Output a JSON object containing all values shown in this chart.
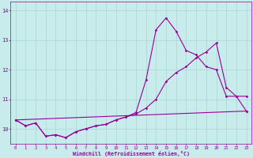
{
  "title": "",
  "xlabel": "Windchill (Refroidissement éolien,°C)",
  "ylabel": "",
  "background_color": "#c8ecec",
  "line_color": "#990099",
  "grid_color": "#aad4d4",
  "xlim": [
    -0.5,
    23.5
  ],
  "ylim": [
    9.5,
    14.3
  ],
  "xticks": [
    0,
    1,
    2,
    3,
    4,
    5,
    6,
    7,
    8,
    9,
    10,
    11,
    12,
    13,
    14,
    15,
    16,
    17,
    18,
    19,
    20,
    21,
    22,
    23
  ],
  "yticks": [
    10,
    11,
    12,
    13,
    14
  ],
  "series": {
    "line1_x": [
      0,
      1,
      2,
      3,
      4,
      5,
      6,
      7,
      8,
      9,
      10,
      11,
      12,
      13,
      14,
      15,
      16,
      17,
      18,
      19,
      20,
      21,
      22,
      23
    ],
    "line1_y": [
      10.3,
      10.1,
      10.2,
      9.75,
      9.8,
      9.7,
      9.9,
      10.0,
      10.1,
      10.15,
      10.3,
      10.4,
      10.55,
      11.65,
      13.35,
      13.75,
      13.3,
      12.65,
      12.5,
      12.1,
      12.0,
      11.1,
      11.1,
      11.1
    ],
    "line2_x": [
      0,
      1,
      2,
      3,
      4,
      5,
      6,
      7,
      8,
      9,
      10,
      11,
      12,
      13,
      14,
      15,
      16,
      17,
      18,
      19,
      20,
      21,
      22,
      23
    ],
    "line2_y": [
      10.3,
      10.1,
      10.2,
      9.75,
      9.8,
      9.7,
      9.9,
      10.0,
      10.1,
      10.15,
      10.3,
      10.4,
      10.5,
      10.7,
      11.0,
      11.6,
      11.9,
      12.1,
      12.4,
      12.6,
      12.9,
      11.4,
      11.1,
      10.6
    ],
    "line3_x": [
      0,
      23
    ],
    "line3_y": [
      10.3,
      10.6
    ]
  }
}
